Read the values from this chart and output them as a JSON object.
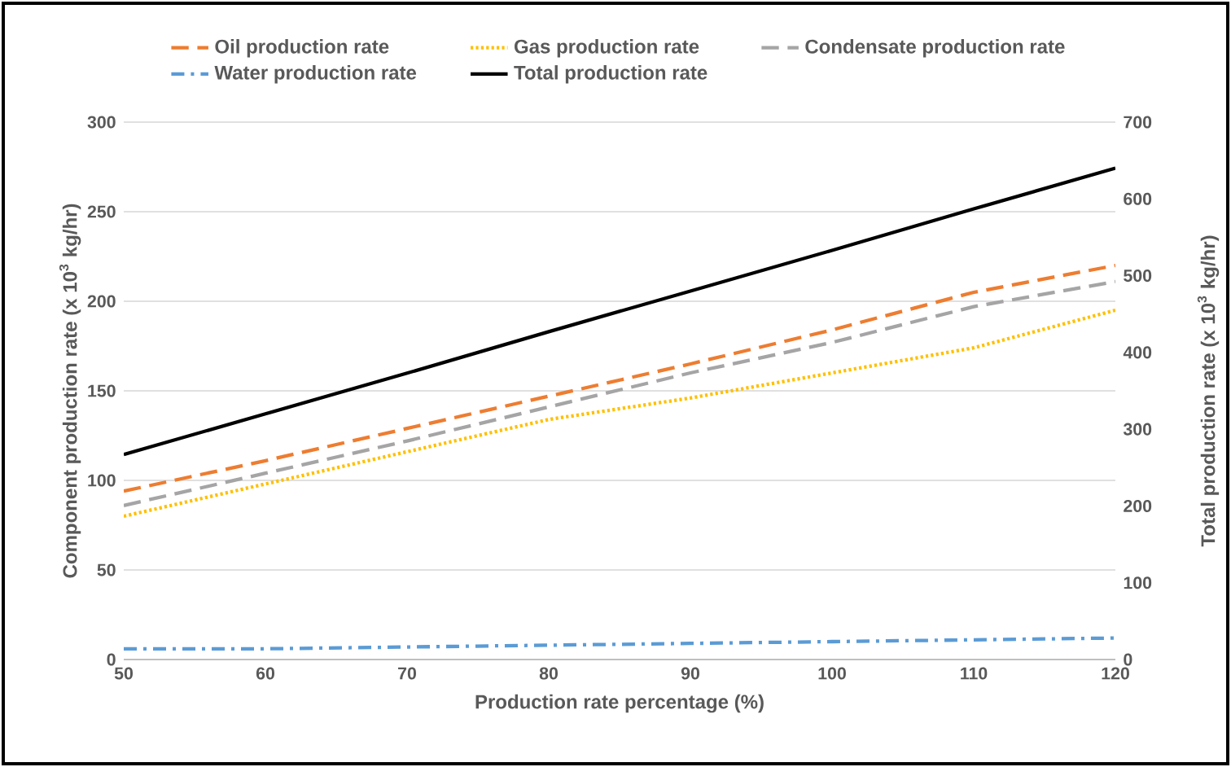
{
  "chart_data": {
    "type": "line",
    "xlabel": "Production rate percentage (%)",
    "ylabel": "Component production rate (x 10$^{3}$ kg/hr)",
    "y2label": "Total production rate (x 10$^{3}$ kg/hr)",
    "x": [
      50,
      60,
      70,
      80,
      90,
      100,
      110,
      120
    ],
    "xlim": [
      50,
      120
    ],
    "xticks": [
      50,
      60,
      70,
      80,
      90,
      100,
      110,
      120
    ],
    "ylim": [
      0,
      300
    ],
    "yticks": [
      0,
      50,
      100,
      150,
      200,
      250,
      300
    ],
    "y2lim": [
      0,
      700
    ],
    "y2ticks": [
      0,
      100,
      200,
      300,
      400,
      500,
      600,
      700
    ],
    "grid": "y",
    "legend": "top",
    "marker": "none",
    "series": [
      {
        "name": "Oil production rate",
        "color": "#ed7d31",
        "line_style": "dashed",
        "values": [
          94,
          111,
          129,
          147,
          165,
          184,
          205,
          220
        ]
      },
      {
        "name": "Gas production rate",
        "color": "#ffc000",
        "line_style": "dotted",
        "values": [
          80,
          98,
          116,
          134,
          146,
          160,
          174,
          195
        ]
      },
      {
        "name": "Condensate production rate",
        "color": "#a5a5a5",
        "line_style": "dashed",
        "values": [
          86,
          104,
          122,
          141,
          160,
          177,
          197,
          211
        ]
      },
      {
        "name": "Water production rate",
        "color": "#5b9bd5",
        "line_style": "dashdot",
        "values": [
          6,
          6,
          7,
          8,
          9,
          10,
          11,
          12
        ]
      },
      {
        "name": "Total production rate",
        "color": "#000000",
        "line_style": "solid",
        "axis": "y2",
        "values": [
          267,
          320,
          373,
          427,
          480,
          533,
          587,
          640
        ]
      }
    ]
  }
}
